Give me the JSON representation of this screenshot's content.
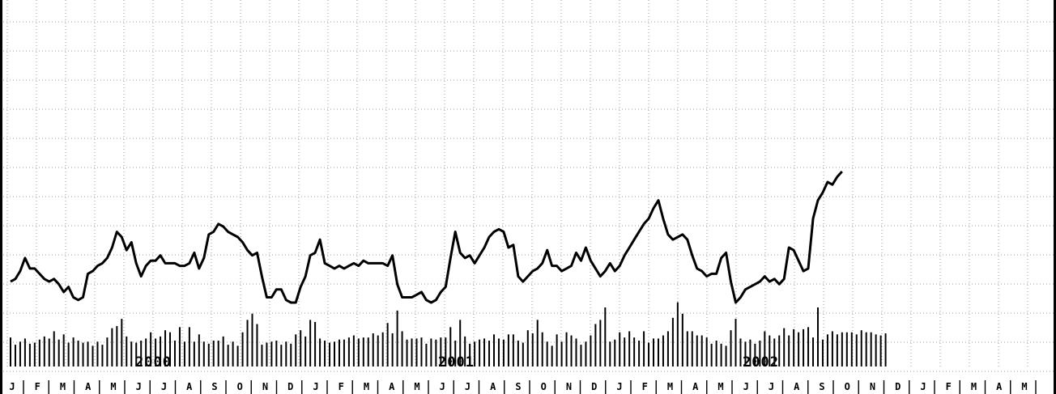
{
  "chart_data": {
    "type": "line",
    "grid": true,
    "x_axis": {
      "month_labels": [
        "J",
        "F",
        "M",
        "A",
        "M",
        "J",
        "J",
        "A",
        "S",
        "O",
        "N",
        "D",
        "J",
        "F",
        "M",
        "A",
        "M",
        "J",
        "J",
        "A",
        "S",
        "O",
        "N",
        "D",
        "J",
        "F",
        "M",
        "A",
        "M",
        "J",
        "J",
        "A",
        "S",
        "O",
        "N",
        "D",
        "J",
        "F",
        "M",
        "A",
        "M"
      ],
      "year_labels": [
        "2000",
        "2001",
        "2002"
      ]
    },
    "series": [
      {
        "type": "line",
        "values": [
          33,
          34,
          37,
          42,
          38,
          38,
          36,
          34,
          33,
          34,
          32,
          29,
          31,
          27,
          26,
          27,
          36,
          37,
          39,
          40,
          42,
          46,
          52,
          50,
          45,
          48,
          40,
          35,
          39,
          41,
          41,
          43,
          40,
          40,
          40,
          39,
          39,
          40,
          44,
          38,
          42,
          51,
          52,
          55,
          54,
          52,
          51,
          50,
          48,
          45,
          43,
          44,
          35,
          27,
          27,
          30,
          30,
          26,
          25,
          25,
          31,
          35,
          43,
          44,
          49,
          40,
          39,
          38,
          39,
          38,
          39,
          40,
          39,
          41,
          40,
          40,
          40,
          40,
          39,
          43,
          32,
          27,
          27,
          27,
          28,
          29,
          26,
          25,
          26,
          29,
          31,
          42,
          52,
          44,
          42,
          43,
          40,
          43,
          46,
          50,
          52,
          53,
          52,
          46,
          47,
          35,
          33,
          35,
          37,
          38,
          40,
          45,
          39,
          39,
          37,
          38,
          39,
          44,
          41,
          46,
          41,
          38,
          35,
          37,
          40,
          37,
          39,
          43,
          46,
          49,
          52,
          55,
          57,
          61,
          64,
          57,
          51,
          49,
          50,
          51,
          49,
          43,
          38,
          37,
          35,
          36,
          36,
          42,
          44,
          33,
          25,
          27,
          30,
          31,
          32,
          33,
          35,
          33,
          34,
          32,
          34,
          46,
          45,
          41,
          37,
          38,
          57,
          64,
          67,
          71,
          70,
          73,
          75
        ],
        "ylim": [
          0,
          130
        ]
      },
      {
        "type": "bar",
        "values": [
          28,
          21,
          24,
          27,
          22,
          23,
          26,
          29,
          27,
          34,
          26,
          31,
          23,
          28,
          25,
          23,
          24,
          20,
          24,
          21,
          28,
          37,
          39,
          46,
          29,
          24,
          23,
          25,
          27,
          33,
          27,
          29,
          35,
          33,
          25,
          38,
          24,
          38,
          24,
          31,
          24,
          22,
          25,
          25,
          29,
          21,
          24,
          20,
          33,
          45,
          51,
          41,
          21,
          23,
          24,
          25,
          21,
          24,
          22,
          31,
          35,
          29,
          45,
          43,
          27,
          25,
          23,
          24,
          26,
          26,
          28,
          30,
          27,
          28,
          28,
          32,
          30,
          33,
          42,
          32,
          54,
          34,
          26,
          27,
          27,
          28,
          22,
          27,
          26,
          28,
          28,
          38,
          25,
          45,
          29,
          22,
          24,
          26,
          27,
          25,
          31,
          27,
          26,
          31,
          31,
          25,
          23,
          35,
          32,
          45,
          33,
          24,
          20,
          31,
          24,
          33,
          30,
          27,
          21,
          24,
          30,
          41,
          45,
          57,
          24,
          26,
          33,
          28,
          34,
          28,
          25,
          34,
          23,
          27,
          27,
          30,
          34,
          47,
          62,
          51,
          34,
          34,
          30,
          30,
          28,
          22,
          25,
          22,
          20,
          35,
          46,
          27,
          24,
          26,
          22,
          25,
          34,
          30,
          27,
          30,
          37,
          30,
          36,
          33,
          36,
          38,
          28,
          57,
          26,
          31,
          34,
          31,
          33,
          33,
          33,
          31,
          35,
          33,
          33,
          31,
          30,
          32
        ],
        "ylim": [
          0,
          100
        ]
      }
    ]
  }
}
